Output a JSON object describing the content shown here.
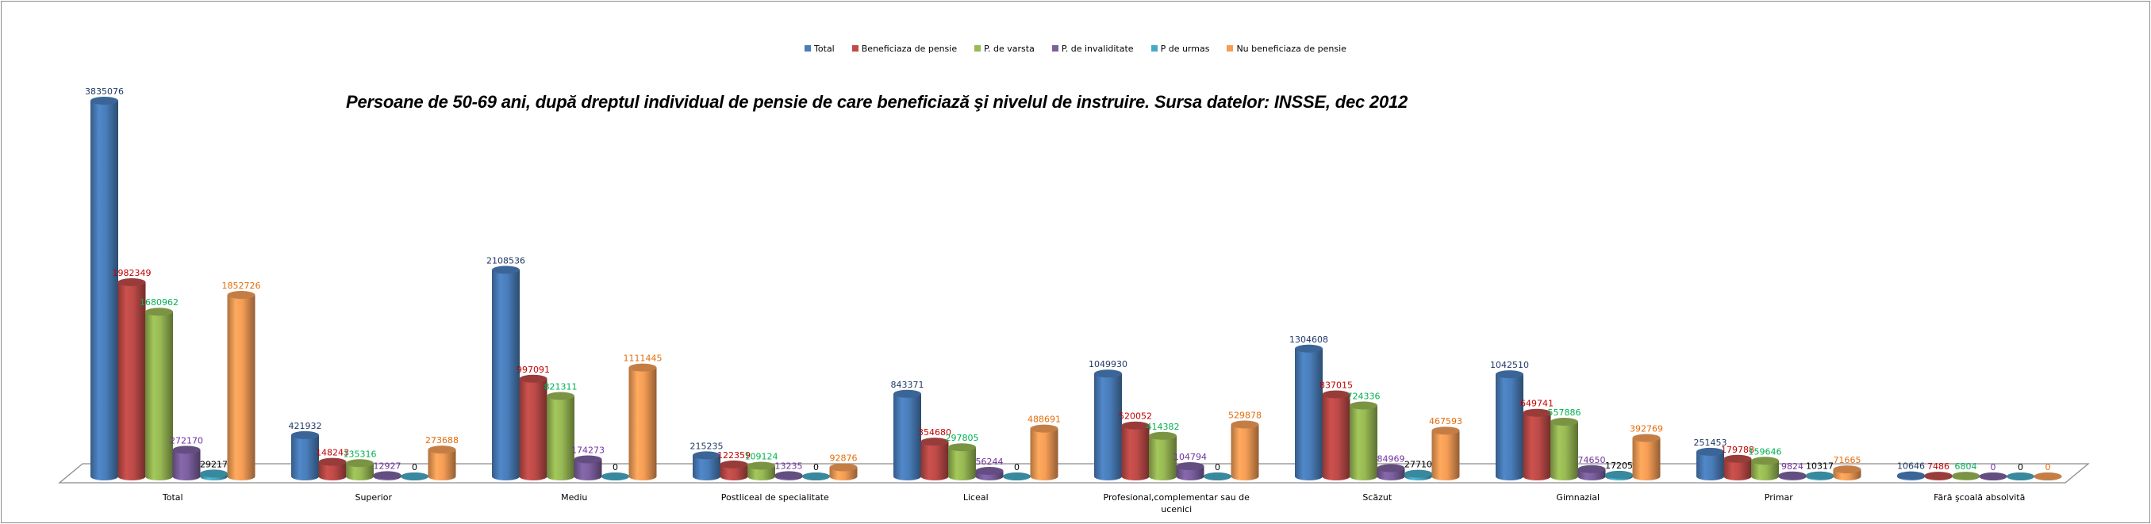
{
  "chart_data": {
    "type": "bar",
    "style": "3d-cylinder-clustered",
    "title": "Persoane de 50-69 ani, după dreptul individual de pensie de care beneficiază şi nivelul de instruire. Sursa datelor: INSSE, dec 2012",
    "xlabel": "",
    "ylabel": "",
    "ylim": [
      0,
      3835076
    ],
    "grid": false,
    "legend_position": "top-center",
    "categories": [
      "Total",
      "Superior",
      "Mediu",
      "Postliceal de specialitate",
      "Liceal",
      "Profesional,complementar sau de ucenici",
      "Scăzut",
      "Gimnazial",
      "Primar",
      "Fără şcoală absolvită"
    ],
    "series": [
      {
        "name": "Total",
        "color": "#4a7ebb",
        "label_color": "#1f3864",
        "values": [
          3835076,
          421932,
          2108536,
          215235,
          843371,
          1049930,
          1304608,
          1042510,
          251453,
          10646
        ]
      },
      {
        "name": "Beneficiaza de pensie",
        "color": "#be4b48",
        "label_color": "#c00000",
        "values": [
          1982349,
          148243,
          997091,
          122359,
          354680,
          520052,
          837015,
          649741,
          179788,
          7486
        ]
      },
      {
        "name": "P. de varsta",
        "color": "#98b954",
        "label_color": "#00b050",
        "values": [
          1680962,
          135316,
          821311,
          109124,
          297805,
          414382,
          724336,
          557886,
          159646,
          6804
        ]
      },
      {
        "name": "P. de invaliditate",
        "color": "#7d60a0",
        "label_color": "#7030a0",
        "values": [
          272170,
          12927,
          174273,
          13235,
          56244,
          104794,
          84969,
          74650,
          9824,
          0
        ]
      },
      {
        "name": "P de urmas",
        "color": "#46aac5",
        "label_color": "#000000",
        "values": [
          29217,
          0,
          0,
          0,
          0,
          0,
          27710,
          17205,
          10317,
          0
        ]
      },
      {
        "name": "Nu beneficiaza de pensie",
        "color": "#f59d56",
        "label_color": "#e46c0a",
        "values": [
          1852726,
          273688,
          1111445,
          92876,
          488691,
          529878,
          467593,
          392769,
          71665,
          0
        ]
      }
    ]
  }
}
